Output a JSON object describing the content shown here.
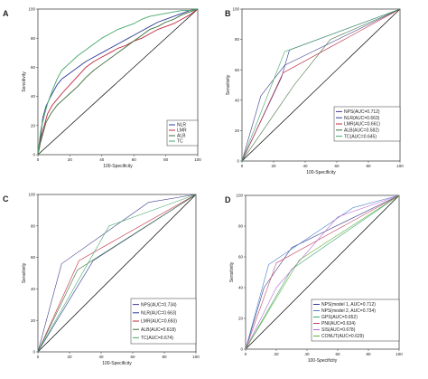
{
  "colors": {
    "diagonal": "#000000",
    "NLR": "#2f3c99",
    "LMR": "#c0283c",
    "ALB": "#3c6e3c",
    "TC": "#47a86a",
    "NPS": "#3c3c8c",
    "NPS1": "#3c3c8c",
    "NPS2": "#4a82c8",
    "GPS": "#3aa66e",
    "PNI": "#c04660",
    "SIS": "#b96ad3",
    "CONUT": "#5fb03a"
  },
  "chart_data": [
    {
      "panel": "A",
      "type": "line",
      "xlabel": "100-Specificity",
      "ylabel": "Sensitivity",
      "xlim": [
        0,
        100
      ],
      "ylim": [
        0,
        100
      ],
      "xticks": [
        0,
        20,
        40,
        60,
        80,
        100
      ],
      "yticks": [
        0,
        20,
        40,
        60,
        80,
        100
      ],
      "legend_position": "bottom-right",
      "series": [
        {
          "name": "NLR",
          "color_key": "NLR",
          "points": [
            [
              0,
              0
            ],
            [
              1,
              8
            ],
            [
              2,
              15
            ],
            [
              3,
              25
            ],
            [
              5,
              33
            ],
            [
              8,
              40
            ],
            [
              12,
              48
            ],
            [
              15,
              52
            ],
            [
              20,
              56
            ],
            [
              25,
              60
            ],
            [
              30,
              64
            ],
            [
              35,
              67
            ],
            [
              40,
              70
            ],
            [
              45,
              73
            ],
            [
              50,
              76
            ],
            [
              55,
              79
            ],
            [
              60,
              82
            ],
            [
              65,
              85
            ],
            [
              70,
              88
            ],
            [
              75,
              91
            ],
            [
              80,
              93
            ],
            [
              85,
              95
            ],
            [
              90,
              97
            ],
            [
              95,
              99
            ],
            [
              100,
              100
            ]
          ]
        },
        {
          "name": "LMR",
          "color_key": "LMR",
          "points": [
            [
              0,
              0
            ],
            [
              1,
              5
            ],
            [
              2,
              12
            ],
            [
              4,
              20
            ],
            [
              6,
              28
            ],
            [
              9,
              34
            ],
            [
              12,
              38
            ],
            [
              15,
              42
            ],
            [
              20,
              48
            ],
            [
              25,
              54
            ],
            [
              30,
              60
            ],
            [
              35,
              64
            ],
            [
              40,
              67
            ],
            [
              45,
              70
            ],
            [
              50,
              73
            ],
            [
              55,
              75
            ],
            [
              60,
              78
            ],
            [
              65,
              80
            ],
            [
              70,
              83
            ],
            [
              75,
              86
            ],
            [
              80,
              88
            ],
            [
              85,
              90
            ],
            [
              90,
              93
            ],
            [
              95,
              96
            ],
            [
              100,
              100
            ]
          ]
        },
        {
          "name": "ALB",
          "color_key": "ALB",
          "points": [
            [
              0,
              0
            ],
            [
              1,
              6
            ],
            [
              3,
              14
            ],
            [
              5,
              22
            ],
            [
              8,
              28
            ],
            [
              12,
              34
            ],
            [
              16,
              38
            ],
            [
              20,
              42
            ],
            [
              25,
              47
            ],
            [
              30,
              53
            ],
            [
              35,
              58
            ],
            [
              40,
              62
            ],
            [
              45,
              66
            ],
            [
              50,
              70
            ],
            [
              55,
              74
            ],
            [
              60,
              78
            ],
            [
              65,
              82
            ],
            [
              70,
              86
            ],
            [
              75,
              88
            ],
            [
              80,
              91
            ],
            [
              85,
              93
            ],
            [
              90,
              96
            ],
            [
              95,
              98
            ],
            [
              100,
              100
            ]
          ]
        },
        {
          "name": "TC",
          "color_key": "TC",
          "points": [
            [
              0,
              0
            ],
            [
              1,
              10
            ],
            [
              2,
              18
            ],
            [
              4,
              27
            ],
            [
              6,
              35
            ],
            [
              9,
              44
            ],
            [
              12,
              52
            ],
            [
              15,
              58
            ],
            [
              20,
              63
            ],
            [
              25,
              68
            ],
            [
              30,
              72
            ],
            [
              35,
              76
            ],
            [
              40,
              80
            ],
            [
              45,
              83
            ],
            [
              50,
              86
            ],
            [
              55,
              88
            ],
            [
              60,
              90
            ],
            [
              65,
              93
            ],
            [
              70,
              95
            ],
            [
              75,
              96
            ],
            [
              80,
              97
            ],
            [
              85,
              98
            ],
            [
              90,
              99
            ],
            [
              95,
              99
            ],
            [
              100,
              100
            ]
          ]
        }
      ]
    },
    {
      "panel": "B",
      "type": "line",
      "xlabel": "100-Specificity",
      "ylabel": "Sensitivity",
      "xlim": [
        0,
        100
      ],
      "ylim": [
        0,
        100
      ],
      "xticks": [
        0,
        20,
        40,
        60,
        80,
        100
      ],
      "yticks": [
        0,
        20,
        40,
        60,
        80,
        100
      ],
      "legend_position": "bottom-right",
      "series": [
        {
          "name": "NPS(AUC=0.712)",
          "color_key": "NPS",
          "points": [
            [
              0,
              0
            ],
            [
              12,
              43
            ],
            [
              27,
              63
            ],
            [
              100,
              100
            ]
          ]
        },
        {
          "name": "NLR(AUC=0.663)",
          "color_key": "NLR",
          "points": [
            [
              0,
              0
            ],
            [
              25,
              55
            ],
            [
              30,
              73
            ],
            [
              100,
              100
            ]
          ]
        },
        {
          "name": "LMR(AUC=0.661)",
          "color_key": "LMR",
          "points": [
            [
              0,
              0
            ],
            [
              26,
              58
            ],
            [
              100,
              100
            ]
          ]
        },
        {
          "name": "ALB(AUC=0.582)",
          "color_key": "ALB",
          "points": [
            [
              0,
              0
            ],
            [
              33,
              50
            ],
            [
              56,
              80
            ],
            [
              100,
              100
            ]
          ]
        },
        {
          "name": "TC(AUC=0.645)",
          "color_key": "TC",
          "points": [
            [
              0,
              0
            ],
            [
              27,
              72
            ],
            [
              100,
              100
            ]
          ]
        }
      ]
    },
    {
      "panel": "C",
      "type": "line",
      "xlabel": "100-Specificity",
      "ylabel": "Sensitivity",
      "xlim": [
        0,
        100
      ],
      "ylim": [
        0,
        100
      ],
      "xticks": [
        0,
        20,
        40,
        60,
        80,
        100
      ],
      "yticks": [
        0,
        20,
        40,
        60,
        80,
        100
      ],
      "legend_position": "bottom-right",
      "series": [
        {
          "name": "NPS(AUC=0.734)",
          "color_key": "NPS",
          "points": [
            [
              0,
              0
            ],
            [
              15,
              56
            ],
            [
              70,
              95
            ],
            [
              100,
              100
            ]
          ]
        },
        {
          "name": "NLR(AUC=0.663)",
          "color_key": "NLR",
          "points": [
            [
              0,
              0
            ],
            [
              35,
              58
            ],
            [
              100,
              100
            ]
          ]
        },
        {
          "name": "LMR(AUC=0.693)",
          "color_key": "LMR",
          "points": [
            [
              0,
              0
            ],
            [
              26,
              58
            ],
            [
              100,
              100
            ]
          ]
        },
        {
          "name": "ALB(AUC=0.618)",
          "color_key": "ALB",
          "points": [
            [
              0,
              0
            ],
            [
              25,
              52
            ],
            [
              100,
              100
            ]
          ]
        },
        {
          "name": "TC(AUC=0.674)",
          "color_key": "TC",
          "points": [
            [
              0,
              0
            ],
            [
              45,
              80
            ],
            [
              100,
              100
            ]
          ]
        }
      ]
    },
    {
      "panel": "D",
      "type": "line",
      "xlabel": "100-Specificity",
      "ylabel": "Sensitivity",
      "xlim": [
        0,
        100
      ],
      "ylim": [
        0,
        100
      ],
      "xticks": [
        0,
        20,
        40,
        60,
        80,
        100
      ],
      "yticks": [
        0,
        20,
        40,
        60,
        80,
        100
      ],
      "legend_position": "bottom-right",
      "series": [
        {
          "name": "NPS(model 1, AUC=0.712)",
          "color_key": "NPS1",
          "points": [
            [
              0,
              0
            ],
            [
              12,
              40
            ],
            [
              30,
              66
            ],
            [
              100,
              100
            ]
          ]
        },
        {
          "name": "NPS(model 2, AUC=0.734)",
          "color_key": "NPS2",
          "points": [
            [
              0,
              0
            ],
            [
              15,
              55
            ],
            [
              70,
              92
            ],
            [
              100,
              100
            ]
          ]
        },
        {
          "name": "GPS(AUC=0.652)",
          "color_key": "GPS",
          "points": [
            [
              0,
              0
            ],
            [
              30,
              52
            ],
            [
              100,
              100
            ]
          ]
        },
        {
          "name": "PNI(AUC=0.634)",
          "color_key": "PNI",
          "points": [
            [
              0,
              0
            ],
            [
              20,
              56
            ],
            [
              100,
              100
            ]
          ]
        },
        {
          "name": "SIS(AUC=0.678)",
          "color_key": "SIS",
          "points": [
            [
              0,
              0
            ],
            [
              20,
              40
            ],
            [
              60,
              86
            ],
            [
              100,
              100
            ]
          ]
        },
        {
          "name": "CONUT(AUC=0.629)",
          "color_key": "CONUT",
          "points": [
            [
              0,
              0
            ],
            [
              35,
              58
            ],
            [
              100,
              100
            ]
          ]
        }
      ]
    }
  ]
}
